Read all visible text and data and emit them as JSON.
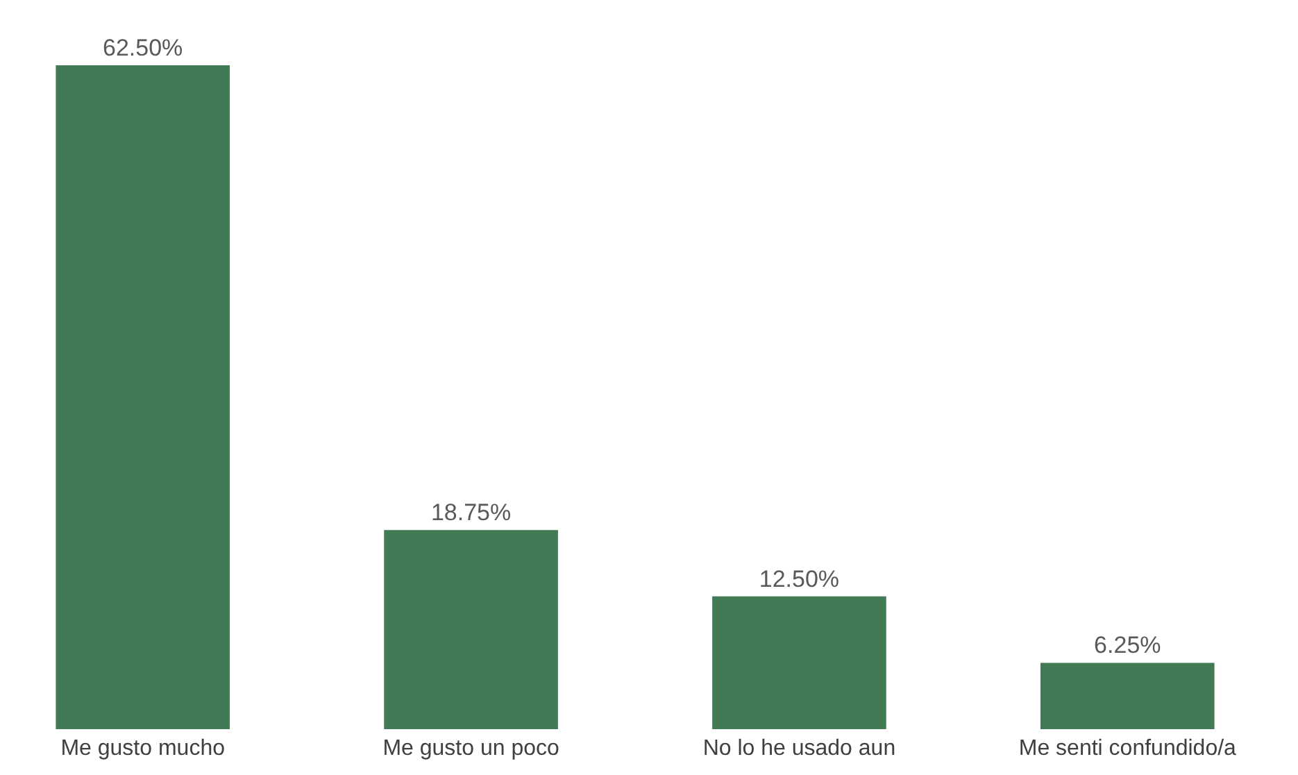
{
  "chart_data": {
    "type": "bar",
    "categories": [
      "Me gusto mucho",
      "Me gusto un poco",
      "No lo he usado aun",
      "Me senti confundido/a"
    ],
    "values": [
      62.5,
      18.75,
      12.5,
      6.25
    ],
    "value_labels": [
      "62.50%",
      "18.75%",
      "12.50%",
      "6.25%"
    ],
    "color": "#437a56"
  }
}
